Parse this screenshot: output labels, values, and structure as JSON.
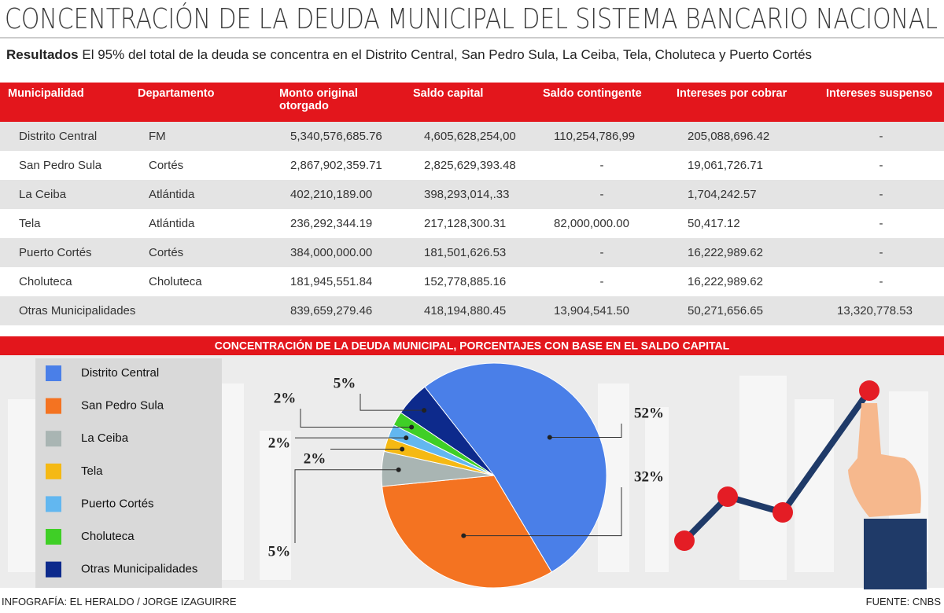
{
  "header": {
    "title": "CONCENTRACIÓN DE LA DEUDA MUNICIPAL DEL SISTEMA BANCARIO NACIONAL",
    "lead": "Resultados",
    "subtitle": "El 95% del total de la deuda se concentra en el Distrito Central, San Pedro Sula, La Ceiba, Tela, Choluteca y Puerto Cortés"
  },
  "table": {
    "columns": [
      "Municipalidad",
      "Departamento",
      "Monto original otorgado",
      "Saldo capital",
      "Saldo contingente",
      "Intereses por cobrar",
      "Intereses suspenso"
    ],
    "rows": [
      [
        "Distrito Central",
        "FM",
        "5,340,576,685.76",
        "4,605,628,254,00",
        "110,254,786,99",
        "205,088,696.42",
        "-"
      ],
      [
        "San Pedro Sula",
        "Cortés",
        "2,867,902,359.71",
        "2,825,629,393.48",
        "-",
        "19,061,726.71",
        "-"
      ],
      [
        "La Ceiba",
        "Atlántida",
        "402,210,189.00",
        "398,293,014,.33",
        "-",
        "1,704,242.57",
        "-"
      ],
      [
        "Tela",
        "Atlántida",
        "236,292,344.19",
        "217,128,300.31",
        "82,000,000.00",
        "50,417.12",
        "-"
      ],
      [
        "Puerto Cortés",
        "Cortés",
        "384,000,000.00",
        "181,501,626.53",
        "-",
        "16,222,989.62",
        "-"
      ],
      [
        "Choluteca",
        "Choluteca",
        "181,945,551.84",
        "152,778,885.16",
        "-",
        "16,222,989.62",
        "-"
      ],
      [
        "Otras Municipalidades",
        null,
        "839,659,279.46",
        "418,194,880.45",
        "13,904,541.50",
        "50,271,656.65",
        "13,320,778.53"
      ]
    ]
  },
  "chart_data": {
    "type": "pie",
    "title": "CONCENTRACIÓN DE LA DEUDA MUNICIPAL, PORCENTAJES CON BASE EN EL SALDO CAPITAL",
    "categories": [
      "Distrito Central",
      "San Pedro Sula",
      "La Ceiba",
      "Tela",
      "Puerto Cortés",
      "Choluteca",
      "Otras Municipalidades"
    ],
    "values": [
      52,
      32,
      5,
      2,
      2,
      2,
      5
    ],
    "value_labels": [
      "52%",
      "32%",
      "5%",
      "2%",
      "2%",
      "2%",
      "5%"
    ],
    "colors": [
      "#4a7fe8",
      "#f47321",
      "#a9b5b3",
      "#f5b914",
      "#62b7f0",
      "#3fcf26",
      "#0d2a8c"
    ],
    "legend": "left"
  },
  "footer": {
    "credit": "INFOGRAFÍA: EL HERALDO / JORGE IZAGUIRRE",
    "source": "FUENTE: CNBS"
  }
}
